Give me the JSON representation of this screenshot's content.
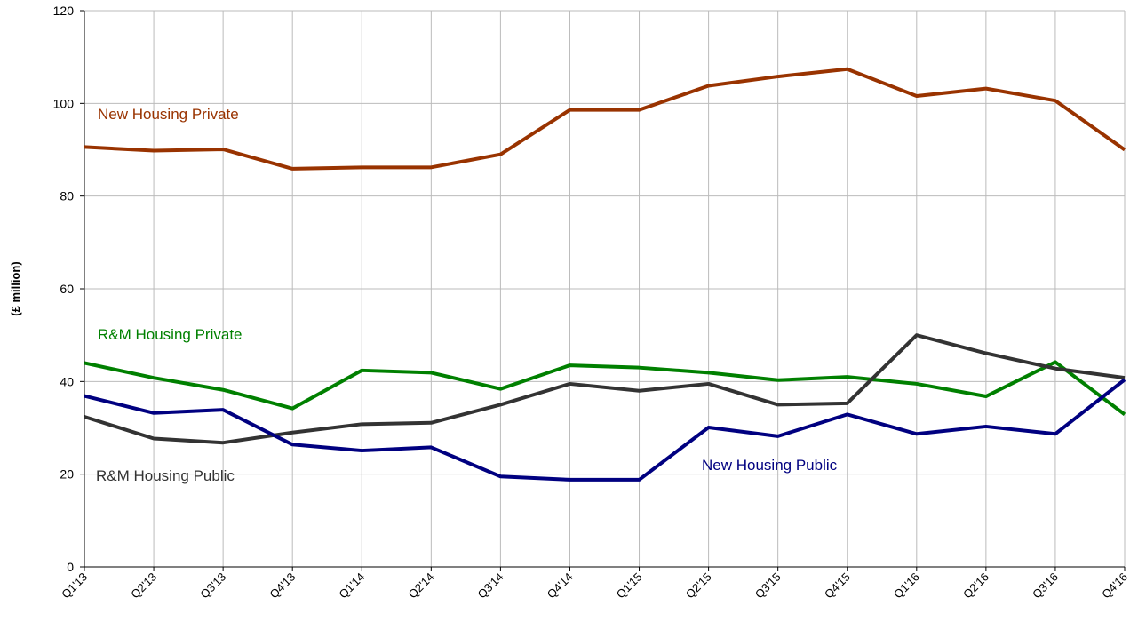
{
  "chart_data": {
    "type": "line",
    "y_label": "(£ million)",
    "categories": [
      "Q1'13",
      "Q2'13",
      "Q3'13",
      "Q4'13",
      "Q1'14",
      "Q2'14",
      "Q3'14",
      "Q4'14",
      "Q1'15",
      "Q2'15",
      "Q3'15",
      "Q4'15",
      "Q1'16",
      "Q2'16",
      "Q3'16",
      "Q4'16"
    ],
    "series": [
      {
        "name": "New Housing Private",
        "color": "#993300",
        "values": [
          90.6,
          89.8,
          90.1,
          85.9,
          86.2,
          86.2,
          89.0,
          98.6,
          98.6,
          103.8,
          105.8,
          107.4,
          101.6,
          103.2,
          100.6,
          90.0
        ]
      },
      {
        "name": "R&M Housing Private",
        "color": "#008000",
        "values": [
          44.0,
          40.8,
          38.2,
          34.2,
          42.4,
          41.9,
          38.4,
          43.5,
          43.0,
          41.9,
          40.3,
          41.0,
          39.5,
          36.8,
          44.2,
          32.9
        ]
      },
      {
        "name": "R&M Housing Public",
        "color": "#333333",
        "values": [
          32.4,
          27.7,
          26.8,
          29.0,
          30.8,
          31.1,
          35.0,
          39.5,
          38.0,
          39.5,
          35.0,
          35.3,
          50.0,
          46.1,
          42.8,
          40.8
        ]
      },
      {
        "name": "New Housing Public",
        "color": "#000080",
        "values": [
          36.9,
          33.2,
          33.9,
          26.4,
          25.1,
          25.8,
          19.5,
          18.8,
          18.8,
          30.1,
          28.2,
          32.9,
          28.7,
          30.3,
          28.7,
          40.4
        ]
      }
    ],
    "ylim": [
      0,
      120
    ],
    "yticks": [
      0,
      20,
      40,
      60,
      80,
      100,
      120
    ],
    "grid": true
  }
}
